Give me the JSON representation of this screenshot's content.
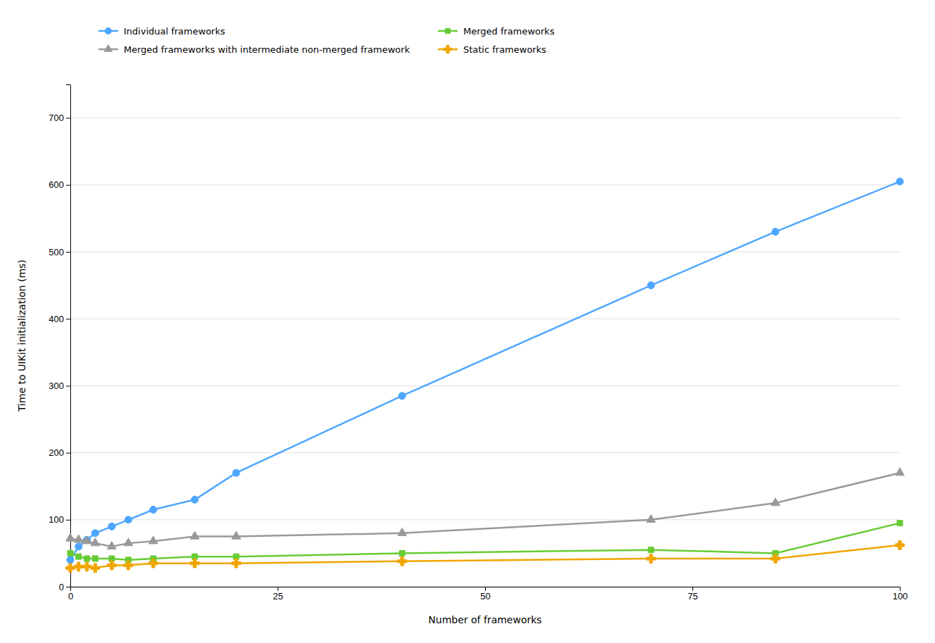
{
  "chart_data": {
    "type": "line",
    "xlabel": "Number of frameworks",
    "ylabel": "Time to UIKit initialization (ms)",
    "x": [
      0,
      1,
      2,
      3,
      5,
      7,
      10,
      15,
      20,
      40,
      70,
      85,
      100
    ],
    "series": [
      {
        "name": "Individual frameworks",
        "color": "#4da6ff",
        "marker": "circle",
        "values": [
          40,
          60,
          70,
          80,
          90,
          100,
          115,
          130,
          170,
          285,
          450,
          530,
          605
        ]
      },
      {
        "name": "Merged frameworks",
        "color": "#66cc33",
        "marker": "square",
        "values": [
          50,
          45,
          42,
          42,
          42,
          40,
          42,
          45,
          45,
          50,
          55,
          50,
          95
        ]
      },
      {
        "name": "Merged frameworks with intermediate non-merged framework",
        "color": "#999999",
        "marker": "triangle",
        "values": [
          72,
          70,
          68,
          65,
          60,
          65,
          68,
          75,
          75,
          80,
          100,
          125,
          170
        ]
      },
      {
        "name": "Static frameworks",
        "color": "#f0a500",
        "marker": "plus",
        "values": [
          28,
          30,
          30,
          28,
          32,
          32,
          35,
          35,
          35,
          38,
          42,
          42,
          62
        ]
      }
    ],
    "xlim": [
      0,
      100
    ],
    "ylim": [
      0,
      750
    ],
    "xticks": [
      0,
      25,
      50,
      75,
      100
    ],
    "yticks": [
      0,
      100,
      200,
      300,
      400,
      500,
      600,
      700
    ],
    "grid": true,
    "legend": "top"
  }
}
